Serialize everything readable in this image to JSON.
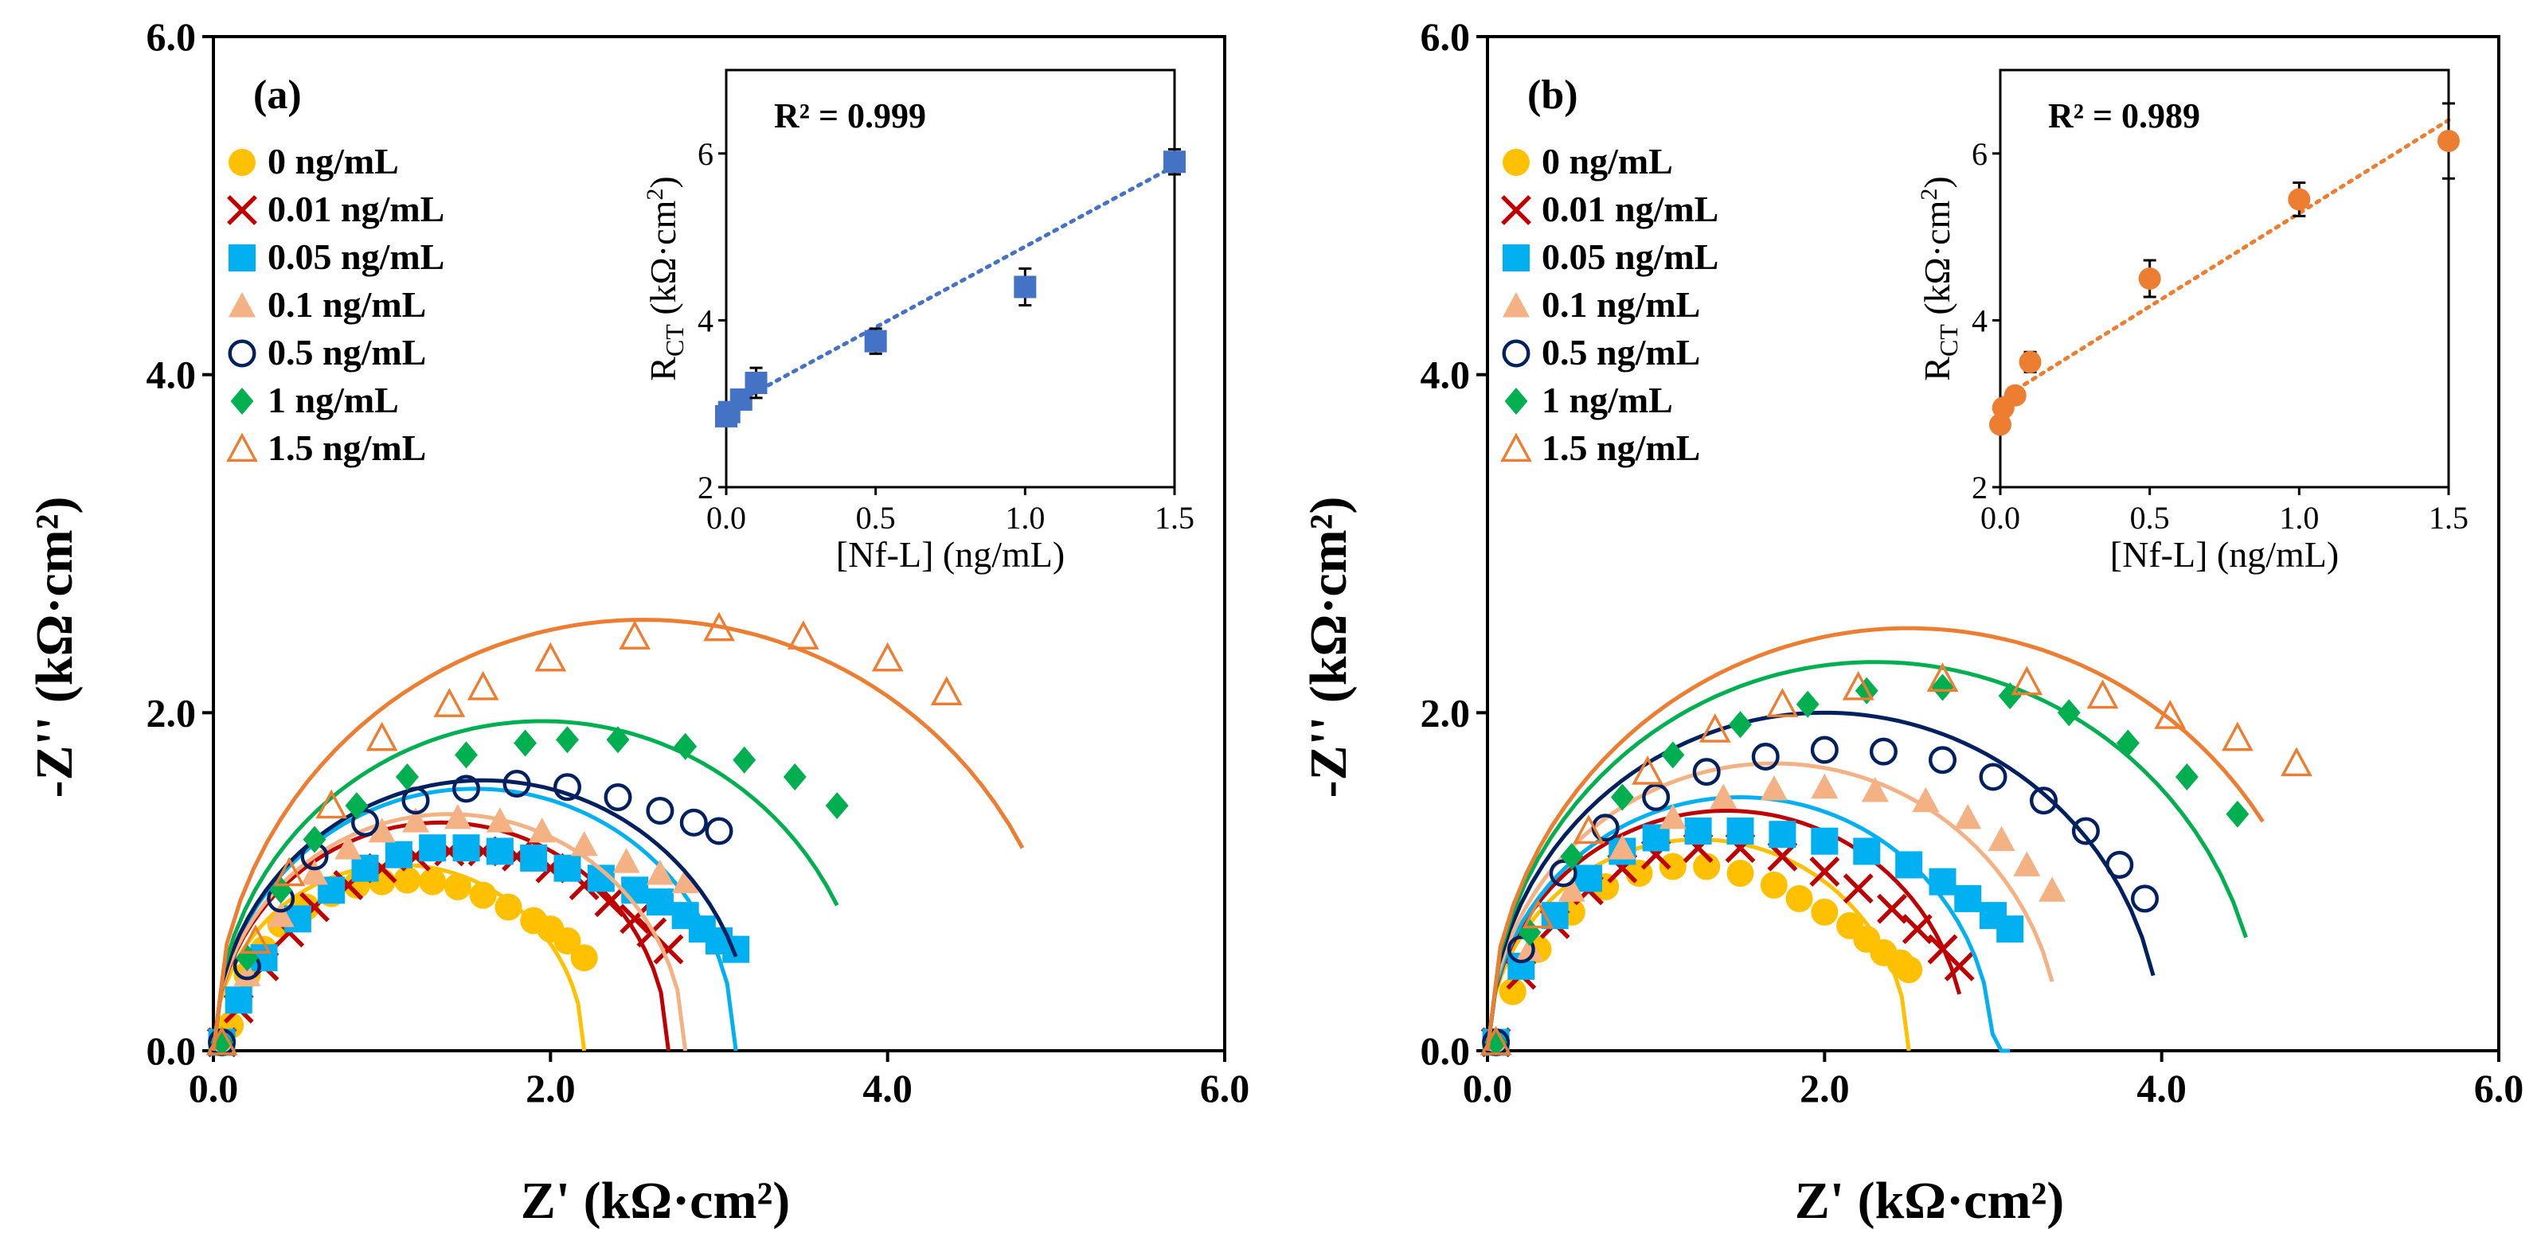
{
  "chart_data": [
    {
      "type": "scatter",
      "panel_label": "(a)",
      "xlabel": "Z' (kΩ·cm²)",
      "ylabel": "-Z'' (kΩ·cm²)",
      "xlim": [
        0,
        6
      ],
      "ylim": [
        0,
        6
      ],
      "x_ticks": [
        "0.0",
        "2.0",
        "4.0",
        "6.0"
      ],
      "y_ticks": [
        "0.0",
        "2.0",
        "4.0",
        "6.0"
      ],
      "legend_position": "top-left",
      "series": [
        {
          "name": "0 ng/mL",
          "marker": "circle-filled",
          "color": "#FFC000",
          "fit": {
            "r": 1.1,
            "end": 2.2
          },
          "x": [
            0.05,
            0.1,
            0.15,
            0.2,
            0.3,
            0.4,
            0.55,
            0.7,
            0.85,
            1.0,
            1.15,
            1.3,
            1.45,
            1.6,
            1.75,
            1.9,
            2.0,
            2.1,
            2.2
          ],
          "y": [
            0.05,
            0.15,
            0.3,
            0.45,
            0.6,
            0.75,
            0.85,
            0.93,
            0.98,
            1.0,
            1.01,
            1.0,
            0.97,
            0.92,
            0.85,
            0.77,
            0.72,
            0.65,
            0.55
          ]
        },
        {
          "name": "0.01 ng/mL",
          "marker": "x",
          "color": "#C00000",
          "fit": {
            "r": 1.35,
            "end": 2.7
          },
          "x": [
            0.05,
            0.15,
            0.3,
            0.45,
            0.6,
            0.8,
            1.0,
            1.2,
            1.4,
            1.6,
            1.8,
            2.0,
            2.2,
            2.35,
            2.5,
            2.6,
            2.7
          ],
          "y": [
            0.05,
            0.25,
            0.5,
            0.7,
            0.85,
            0.98,
            1.08,
            1.15,
            1.18,
            1.18,
            1.15,
            1.08,
            0.98,
            0.88,
            0.78,
            0.7,
            0.6
          ]
        },
        {
          "name": "0.05 ng/mL",
          "marker": "square-filled",
          "color": "#00B0F0",
          "fit": {
            "r": 1.55,
            "end": 3.1
          },
          "x": [
            0.05,
            0.15,
            0.3,
            0.5,
            0.7,
            0.9,
            1.1,
            1.3,
            1.5,
            1.7,
            1.9,
            2.1,
            2.3,
            2.5,
            2.65,
            2.8,
            2.9,
            3.0,
            3.1
          ],
          "y": [
            0.05,
            0.3,
            0.55,
            0.78,
            0.95,
            1.08,
            1.16,
            1.2,
            1.2,
            1.18,
            1.14,
            1.08,
            1.02,
            0.95,
            0.88,
            0.8,
            0.72,
            0.65,
            0.6
          ]
        },
        {
          "name": "0.1 ng/mL",
          "marker": "triangle-filled",
          "color": "#F4B183",
          "fit": {
            "r": 1.4,
            "end": 2.8
          },
          "x": [
            0.05,
            0.2,
            0.4,
            0.6,
            0.8,
            1.0,
            1.2,
            1.45,
            1.7,
            1.95,
            2.2,
            2.45,
            2.65,
            2.8
          ],
          "y": [
            0.05,
            0.45,
            0.8,
            1.05,
            1.2,
            1.3,
            1.36,
            1.38,
            1.36,
            1.3,
            1.22,
            1.12,
            1.05,
            1.0
          ]
        },
        {
          "name": "0.5 ng/mL",
          "marker": "circle-open",
          "color": "#002060",
          "fit": {
            "r": 1.6,
            "end": 3.1
          },
          "x": [
            0.05,
            0.2,
            0.4,
            0.6,
            0.9,
            1.2,
            1.5,
            1.8,
            2.1,
            2.4,
            2.65,
            2.85,
            3.0
          ],
          "y": [
            0.05,
            0.5,
            0.9,
            1.15,
            1.35,
            1.48,
            1.55,
            1.58,
            1.56,
            1.5,
            1.42,
            1.35,
            1.3
          ]
        },
        {
          "name": "1 ng/mL",
          "marker": "diamond-filled",
          "color": "#00B050",
          "fit": {
            "r": 1.95,
            "end": 3.7
          },
          "x": [
            0.05,
            0.2,
            0.4,
            0.6,
            0.85,
            1.15,
            1.5,
            1.85,
            2.1,
            2.4,
            2.8,
            3.15,
            3.45,
            3.7
          ],
          "y": [
            0.05,
            0.55,
            0.95,
            1.25,
            1.45,
            1.62,
            1.75,
            1.82,
            1.84,
            1.84,
            1.8,
            1.72,
            1.62,
            1.45
          ]
        },
        {
          "name": "1.5 ng/mL",
          "marker": "triangle-open",
          "color": "#ED7D31",
          "fit": {
            "r": 2.55,
            "end": 4.8
          },
          "x": [
            0.05,
            0.25,
            0.45,
            0.7,
            1.0,
            1.4,
            1.6,
            2.0,
            2.5,
            3.0,
            3.5,
            4.0,
            4.35
          ],
          "y": [
            0.05,
            0.65,
            1.05,
            1.45,
            1.85,
            2.05,
            2.15,
            2.32,
            2.45,
            2.5,
            2.45,
            2.32,
            2.12
          ]
        }
      ],
      "inset": {
        "type": "scatter",
        "xlabel": "[Nf-L] (ng/mL)",
        "ylabel": "R_CT (kΩ·cm²)",
        "ylabel_main": "R",
        "ylabel_sub": "CT",
        "ylabel_unit": " (kΩ·cm",
        "ylabel_sup": "2",
        "ylabel_close": ")",
        "xlim": [
          0,
          1.5
        ],
        "ylim": [
          2,
          7
        ],
        "x_ticks": [
          "0.0",
          "0.5",
          "1.0",
          "1.5"
        ],
        "y_ticks": [
          "2",
          "4",
          "6"
        ],
        "annotation": "R² = 0.999",
        "color": "#4472C4",
        "marker": "square-filled",
        "x": [
          0,
          0.01,
          0.05,
          0.1,
          0.5,
          1.0,
          1.5
        ],
        "y": [
          2.85,
          2.9,
          3.05,
          3.25,
          3.75,
          4.4,
          5.9
        ],
        "err": [
          0.08,
          0.08,
          0.1,
          0.18,
          0.15,
          0.22,
          0.15
        ],
        "trendline": {
          "x0": 0,
          "y0": 2.95,
          "x1": 1.5,
          "y1": 5.85
        }
      }
    },
    {
      "type": "scatter",
      "panel_label": "(b)",
      "xlabel": "Z' (kΩ·cm²)",
      "ylabel": "-Z'' (kΩ·cm²)",
      "xlim": [
        0,
        6
      ],
      "ylim": [
        0,
        6
      ],
      "x_ticks": [
        "0.0",
        "2.0",
        "4.0",
        "6.0"
      ],
      "y_ticks": [
        "0.0",
        "2.0",
        "4.0",
        "6.0"
      ],
      "legend_position": "top-left",
      "series": [
        {
          "name": "0 ng/mL",
          "marker": "circle-filled",
          "color": "#FFC000",
          "fit": {
            "r": 1.25,
            "end": 2.5
          },
          "x": [
            0.05,
            0.15,
            0.3,
            0.5,
            0.7,
            0.9,
            1.1,
            1.3,
            1.5,
            1.7,
            1.85,
            2.0,
            2.15,
            2.25,
            2.35,
            2.45,
            2.5
          ],
          "y": [
            0.05,
            0.35,
            0.6,
            0.82,
            0.97,
            1.05,
            1.09,
            1.09,
            1.05,
            0.98,
            0.9,
            0.82,
            0.74,
            0.66,
            0.58,
            0.52,
            0.48
          ]
        },
        {
          "name": "0.01 ng/mL",
          "marker": "x",
          "color": "#C00000",
          "fit": {
            "r": 1.42,
            "end": 2.8
          },
          "x": [
            0.05,
            0.2,
            0.4,
            0.6,
            0.8,
            1.0,
            1.25,
            1.5,
            1.75,
            2.0,
            2.2,
            2.4,
            2.55,
            2.7,
            2.8
          ],
          "y": [
            0.05,
            0.45,
            0.75,
            0.95,
            1.08,
            1.16,
            1.2,
            1.2,
            1.15,
            1.06,
            0.96,
            0.84,
            0.72,
            0.6,
            0.5
          ]
        },
        {
          "name": "0.05 ng/mL",
          "marker": "square-filled",
          "color": "#00B0F0",
          "fit": {
            "r": 1.5,
            "end": 3.1
          },
          "x": [
            0.05,
            0.2,
            0.4,
            0.6,
            0.8,
            1.0,
            1.25,
            1.5,
            1.75,
            2.0,
            2.25,
            2.5,
            2.7,
            2.85,
            3.0,
            3.1
          ],
          "y": [
            0.05,
            0.5,
            0.8,
            1.02,
            1.18,
            1.26,
            1.3,
            1.3,
            1.28,
            1.24,
            1.18,
            1.1,
            1.0,
            0.9,
            0.8,
            0.72
          ]
        },
        {
          "name": "0.1 ng/mL",
          "marker": "triangle-filled",
          "color": "#F4B183",
          "fit": {
            "r": 1.7,
            "end": 3.35
          },
          "x": [
            0.05,
            0.25,
            0.5,
            0.8,
            1.1,
            1.4,
            1.7,
            2.0,
            2.3,
            2.6,
            2.85,
            3.05,
            3.2,
            3.35
          ],
          "y": [
            0.05,
            0.6,
            0.95,
            1.2,
            1.38,
            1.5,
            1.55,
            1.56,
            1.54,
            1.48,
            1.38,
            1.25,
            1.1,
            0.95
          ]
        },
        {
          "name": "0.5 ng/mL",
          "marker": "circle-open",
          "color": "#002060",
          "fit": {
            "r": 2.0,
            "end": 3.95
          },
          "x": [
            0.05,
            0.2,
            0.45,
            0.7,
            1.0,
            1.3,
            1.65,
            2.0,
            2.35,
            2.7,
            3.0,
            3.3,
            3.55,
            3.75,
            3.9
          ],
          "y": [
            0.05,
            0.6,
            1.05,
            1.32,
            1.5,
            1.65,
            1.74,
            1.78,
            1.77,
            1.72,
            1.62,
            1.48,
            1.3,
            1.1,
            0.9
          ]
        },
        {
          "name": "1 ng/mL",
          "marker": "diamond-filled",
          "color": "#00B050",
          "fit": {
            "r": 2.3,
            "end": 4.5
          },
          "x": [
            0.05,
            0.25,
            0.5,
            0.8,
            1.1,
            1.5,
            1.9,
            2.25,
            2.7,
            3.1,
            3.45,
            3.8,
            4.15,
            4.45
          ],
          "y": [
            0.05,
            0.7,
            1.15,
            1.5,
            1.75,
            1.93,
            2.05,
            2.13,
            2.15,
            2.1,
            2.0,
            1.82,
            1.62,
            1.4
          ]
        },
        {
          "name": "1.5 ng/mL",
          "marker": "triangle-open",
          "color": "#ED7D31",
          "fit": {
            "r": 2.5,
            "end": 4.6
          },
          "x": [
            0.05,
            0.3,
            0.6,
            0.95,
            1.35,
            1.75,
            2.2,
            2.7,
            3.2,
            3.65,
            4.05,
            4.45,
            4.8
          ],
          "y": [
            0.05,
            0.8,
            1.3,
            1.65,
            1.9,
            2.05,
            2.15,
            2.2,
            2.18,
            2.1,
            1.98,
            1.85,
            1.7
          ]
        }
      ],
      "inset": {
        "type": "scatter",
        "xlabel": "[Nf-L] (ng/mL)",
        "ylabel": "R_CT (kΩ·cm²)",
        "ylabel_main": "R",
        "ylabel_sub": "CT",
        "ylabel_unit": " (kΩ·cm",
        "ylabel_sup": "2",
        "ylabel_close": ")",
        "xlim": [
          0,
          1.5
        ],
        "ylim": [
          2,
          7
        ],
        "x_ticks": [
          "0.0",
          "0.5",
          "1.0",
          "1.5"
        ],
        "y_ticks": [
          "2",
          "4",
          "6"
        ],
        "annotation": "R² = 0.989",
        "color": "#ED7D31",
        "marker": "circle-filled",
        "x": [
          0,
          0.01,
          0.05,
          0.1,
          0.5,
          1.0,
          1.5
        ],
        "y": [
          2.75,
          2.95,
          3.1,
          3.5,
          4.5,
          5.45,
          6.15
        ],
        "err": [
          0.05,
          0.05,
          0.05,
          0.12,
          0.22,
          0.2,
          0.45
        ],
        "trendline": {
          "x0": 0,
          "y0": 3.05,
          "x1": 1.5,
          "y1": 6.4
        }
      }
    }
  ]
}
